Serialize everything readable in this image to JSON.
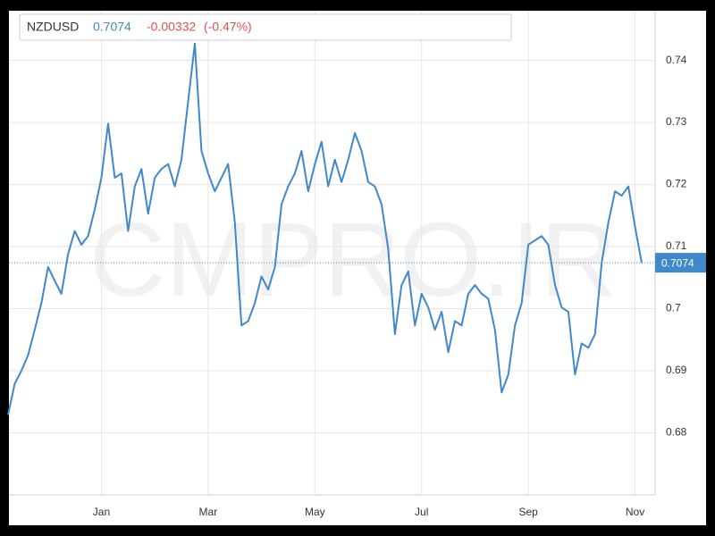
{
  "chart_data": {
    "type": "line",
    "title": "NZDUSD",
    "last_value": 0.7074,
    "change": "-0.00332",
    "change_pct": "(-0.47%)",
    "watermark": "CMPRO.IR",
    "categories": [
      null,
      null,
      null,
      null,
      null,
      null,
      null,
      null,
      null,
      null,
      null,
      null,
      null,
      null,
      "Jan",
      null,
      null,
      null,
      null,
      null,
      null,
      null,
      null,
      null,
      null,
      null,
      null,
      null,
      null,
      null,
      "Mar",
      null,
      null,
      null,
      null,
      null,
      null,
      null,
      null,
      null,
      null,
      null,
      null,
      null,
      null,
      null,
      "May",
      null,
      null,
      null,
      null,
      null,
      null,
      null,
      null,
      null,
      null,
      null,
      null,
      null,
      null,
      null,
      "Jul",
      null,
      null,
      null,
      null,
      null,
      null,
      null,
      null,
      null,
      null,
      null,
      null,
      null,
      null,
      null,
      "Sep",
      null,
      null,
      null,
      null,
      null,
      null,
      null,
      null,
      null,
      null,
      null,
      null,
      null,
      null,
      null,
      "Nov",
      null
    ],
    "series": [
      {
        "name": "NZDUSD",
        "color": "#3f88cc",
        "values": [
          0.6829,
          0.6879,
          0.69,
          0.6925,
          0.6966,
          0.7009,
          0.7067,
          0.7045,
          0.7024,
          0.7088,
          0.7125,
          0.7103,
          0.7117,
          0.716,
          0.7211,
          0.7298,
          0.7211,
          0.7218,
          0.7125,
          0.7197,
          0.7225,
          0.7153,
          0.7211,
          0.7225,
          0.7233,
          0.7197,
          0.724,
          0.7334,
          0.7427,
          0.7254,
          0.7218,
          0.7189,
          0.7211,
          0.7233,
          0.7139,
          0.6973,
          0.698,
          0.7009,
          0.7052,
          0.7031,
          0.7067,
          0.7168,
          0.7197,
          0.7218,
          0.7254,
          0.7189,
          0.7233,
          0.7269,
          0.7197,
          0.724,
          0.7204,
          0.724,
          0.7283,
          0.7254,
          0.7204,
          0.7197,
          0.7168,
          0.7096,
          0.6959,
          0.7038,
          0.706,
          0.6973,
          0.7024,
          0.7002,
          0.6966,
          0.6995,
          0.693,
          0.698,
          0.6973,
          0.7024,
          0.7038,
          0.7024,
          0.7016,
          0.6966,
          0.6865,
          0.6894,
          0.6973,
          0.7009,
          0.7103,
          0.711,
          0.7117,
          0.7103,
          0.7038,
          0.7002,
          0.6995,
          0.6894,
          0.6944,
          0.6937,
          0.6959,
          0.7074,
          0.7139,
          0.7189,
          0.7182,
          0.7197,
          0.7132,
          0.7074
        ]
      }
    ],
    "ylim": [
      0.67,
      0.748
    ],
    "yticks": [
      0.68,
      0.69,
      0.7,
      0.71,
      0.72,
      0.73,
      0.74
    ],
    "grid": true
  }
}
